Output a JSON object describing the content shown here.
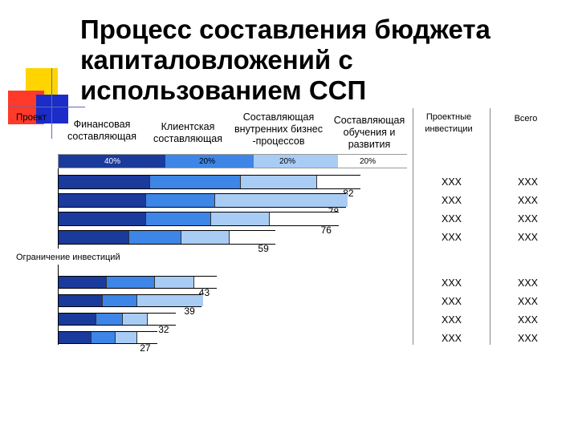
{
  "title": "Процесс составления бюджета\nкапиталовложений с\nиспользованием ССП",
  "left_label": "Проект",
  "headers": {
    "financial": "Финансовая\nсоставляющая",
    "client": "Клиентская\nсоставляющая",
    "internal": "Составляющая\nвнутренних бизнес\n-процессов",
    "learning": "Составляющая\nобучения и\nразвития",
    "investments": "Проектные\nинвестиции",
    "total": "Всего"
  },
  "weights": [
    "40%",
    "20%",
    "20%",
    "20%"
  ],
  "constraint_label": "Ограничение инвестиций",
  "colors": {
    "seg1": "#1a3a9c",
    "seg2": "#3d85e6",
    "seg3": "#a9ccf5",
    "seg4": "#ffffff"
  },
  "chart_data": {
    "type": "bar",
    "stacked": true,
    "orientation": "horizontal",
    "categories": [
      "Финансовая составляющая",
      "Клиентская составляющая",
      "Составляющая внутренних бизнес-процессов",
      "Составляющая обучения и развития"
    ],
    "weights_percent": [
      40,
      20,
      20,
      20
    ],
    "group_above_constraint": [
      {
        "total": 82,
        "investments": "XXX",
        "all": "XXX"
      },
      {
        "total": 78,
        "investments": "XXX",
        "all": "XXX"
      },
      {
        "total": 76,
        "investments": "XXX",
        "all": "XXX"
      },
      {
        "total": 59,
        "investments": "XXX",
        "all": "XXX"
      }
    ],
    "group_below_constraint": [
      {
        "total": 43,
        "investments": "XXX",
        "all": "XXX"
      },
      {
        "total": 39,
        "investments": "XXX",
        "all": "XXX"
      },
      {
        "total": 32,
        "investments": "XXX",
        "all": "XXX"
      },
      {
        "total": 27,
        "investments": "XXX",
        "all": "XXX"
      }
    ]
  }
}
